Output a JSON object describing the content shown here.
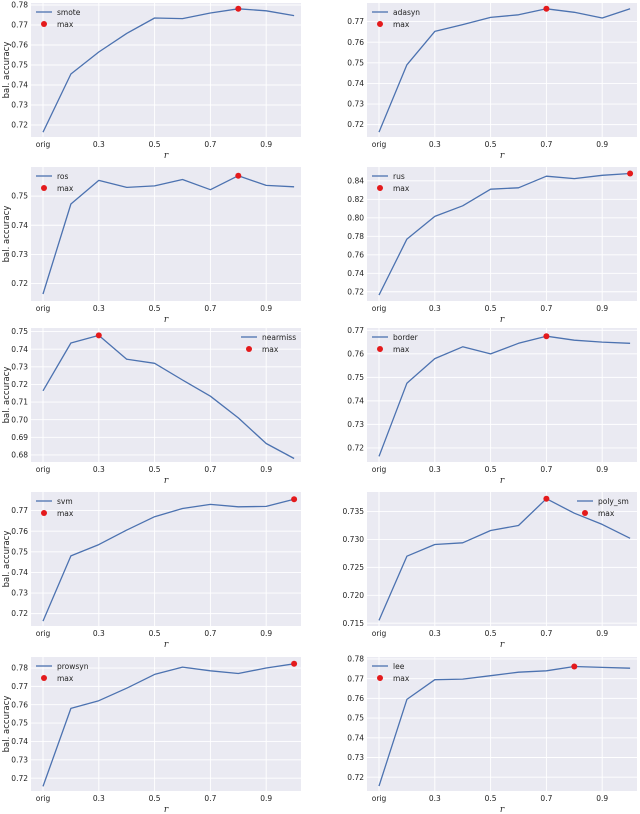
{
  "chart_data": [
    {
      "type": "line",
      "x": [
        "orig",
        "0.2",
        "0.3",
        "0.4",
        "0.5",
        "0.6",
        "0.7",
        "0.8",
        "0.9",
        "1.0"
      ],
      "xticks": [
        "orig",
        "0.3",
        "0.5",
        "0.7",
        "0.9"
      ],
      "xlabel": "r",
      "ylabel": "bal. accuracy",
      "ylim": [
        0.714,
        0.781
      ],
      "yticks": [
        "0.72",
        "0.73",
        "0.74",
        "0.75",
        "0.76",
        "0.77",
        "0.78"
      ],
      "series": [
        {
          "name": "smote",
          "values": [
            0.7164,
            0.7455,
            0.7565,
            0.7658,
            0.7735,
            0.7732,
            0.776,
            0.7781,
            0.7771,
            0.7747
          ]
        }
      ],
      "max_marker": {
        "label": "max",
        "x_index": 7
      },
      "legend": "top-left",
      "grid": true
    },
    {
      "type": "line",
      "x": [
        "orig",
        "0.2",
        "0.3",
        "0.4",
        "0.5",
        "0.6",
        "0.7",
        "0.8",
        "0.9",
        "1.0"
      ],
      "xticks": [
        "orig",
        "0.3",
        "0.5",
        "0.7",
        "0.9"
      ],
      "xlabel": "r",
      "ylabel": "",
      "ylim": [
        0.714,
        0.779
      ],
      "yticks": [
        "0.72",
        "0.73",
        "0.74",
        "0.75",
        "0.76",
        "0.77"
      ],
      "series": [
        {
          "name": "adasyn",
          "values": [
            0.7164,
            0.749,
            0.7652,
            0.7685,
            0.772,
            0.7733,
            0.7762,
            0.7745,
            0.7717,
            0.7762
          ]
        }
      ],
      "max_marker": {
        "label": "max",
        "x_index": 6
      },
      "legend": "top-left",
      "grid": true
    },
    {
      "type": "line",
      "x": [
        "orig",
        "0.2",
        "0.3",
        "0.4",
        "0.5",
        "0.6",
        "0.7",
        "0.8",
        "0.9",
        "1.0"
      ],
      "xticks": [
        "orig",
        "0.3",
        "0.5",
        "0.7",
        "0.9"
      ],
      "xlabel": "r",
      "ylabel": "bal. accuracy",
      "ylim": [
        0.714,
        0.76
      ],
      "yticks": [
        "0.72",
        "0.73",
        "0.74",
        "0.75"
      ],
      "series": [
        {
          "name": "ros",
          "values": [
            0.7164,
            0.7473,
            0.7554,
            0.753,
            0.7535,
            0.7557,
            0.7522,
            0.757,
            0.7537,
            0.7532
          ]
        }
      ],
      "max_marker": {
        "label": "max",
        "x_index": 7
      },
      "legend": "top-left",
      "grid": true
    },
    {
      "type": "line",
      "x": [
        "orig",
        "0.2",
        "0.3",
        "0.4",
        "0.5",
        "0.6",
        "0.7",
        "0.8",
        "0.9",
        "1.0"
      ],
      "xticks": [
        "orig",
        "0.3",
        "0.5",
        "0.7",
        "0.9"
      ],
      "xlabel": "r",
      "ylabel": "",
      "ylim": [
        0.71,
        0.855
      ],
      "yticks": [
        "0.72",
        "0.74",
        "0.76",
        "0.78",
        "0.80",
        "0.82",
        "0.84"
      ],
      "series": [
        {
          "name": "rus",
          "values": [
            0.7164,
            0.777,
            0.8015,
            0.813,
            0.831,
            0.8325,
            0.845,
            0.8425,
            0.846,
            0.848
          ]
        }
      ],
      "max_marker": {
        "label": "max",
        "x_index": 9
      },
      "legend": "top-left",
      "grid": true
    },
    {
      "type": "line",
      "x": [
        "orig",
        "0.2",
        "0.3",
        "0.4",
        "0.5",
        "0.6",
        "0.7",
        "0.8",
        "0.9",
        "1.0"
      ],
      "xticks": [
        "orig",
        "0.3",
        "0.5",
        "0.7",
        "0.9"
      ],
      "xlabel": "r",
      "ylabel": "bal. accuracy",
      "ylim": [
        0.676,
        0.752
      ],
      "yticks": [
        "0.68",
        "0.69",
        "0.70",
        "0.71",
        "0.72",
        "0.73",
        "0.74",
        "0.75"
      ],
      "series": [
        {
          "name": "nearmiss",
          "values": [
            0.7164,
            0.7435,
            0.7478,
            0.7343,
            0.732,
            0.7225,
            0.7133,
            0.701,
            0.6865,
            0.678
          ]
        }
      ],
      "max_marker": {
        "label": "max",
        "x_index": 2
      },
      "legend": "top-right",
      "grid": true
    },
    {
      "type": "line",
      "x": [
        "orig",
        "0.2",
        "0.3",
        "0.4",
        "0.5",
        "0.6",
        "0.7",
        "0.8",
        "0.9",
        "1.0"
      ],
      "xticks": [
        "orig",
        "0.3",
        "0.5",
        "0.7",
        "0.9"
      ],
      "xlabel": "r",
      "ylabel": "",
      "ylim": [
        0.714,
        0.771
      ],
      "yticks": [
        "0.72",
        "0.73",
        "0.74",
        "0.75",
        "0.76",
        "0.77"
      ],
      "series": [
        {
          "name": "border",
          "values": [
            0.7164,
            0.7475,
            0.758,
            0.763,
            0.76,
            0.7645,
            0.7675,
            0.7658,
            0.765,
            0.7645
          ]
        }
      ],
      "max_marker": {
        "label": "max",
        "x_index": 6
      },
      "legend": "top-left",
      "grid": true
    },
    {
      "type": "line",
      "x": [
        "orig",
        "0.2",
        "0.3",
        "0.4",
        "0.5",
        "0.6",
        "0.7",
        "0.8",
        "0.9",
        "1.0"
      ],
      "xticks": [
        "orig",
        "0.3",
        "0.5",
        "0.7",
        "0.9"
      ],
      "xlabel": "r",
      "ylabel": "bal. accuracy",
      "ylim": [
        0.714,
        0.779
      ],
      "yticks": [
        "0.72",
        "0.73",
        "0.74",
        "0.75",
        "0.76",
        "0.77"
      ],
      "series": [
        {
          "name": "svm",
          "values": [
            0.7164,
            0.748,
            0.7535,
            0.7605,
            0.767,
            0.771,
            0.773,
            0.7718,
            0.772,
            0.7755
          ]
        }
      ],
      "max_marker": {
        "label": "max",
        "x_index": 9
      },
      "legend": "top-left",
      "grid": true
    },
    {
      "type": "line",
      "x": [
        "orig",
        "0.2",
        "0.3",
        "0.4",
        "0.5",
        "0.6",
        "0.7",
        "0.8",
        "0.9",
        "1.0"
      ],
      "xticks": [
        "orig",
        "0.3",
        "0.5",
        "0.7",
        "0.9"
      ],
      "xlabel": "r",
      "ylabel": "",
      "ylim": [
        0.7145,
        0.7385
      ],
      "yticks": [
        "0.715",
        "0.720",
        "0.725",
        "0.730",
        "0.735"
      ],
      "series": [
        {
          "name": "poly_sm",
          "values": [
            0.7155,
            0.727,
            0.7291,
            0.7294,
            0.7316,
            0.7325,
            0.7373,
            0.7347,
            0.7327,
            0.7302
          ]
        }
      ],
      "max_marker": {
        "label": "max",
        "x_index": 6
      },
      "legend": "top-right",
      "grid": true
    },
    {
      "type": "line",
      "x": [
        "orig",
        "0.2",
        "0.3",
        "0.4",
        "0.5",
        "0.6",
        "0.7",
        "0.8",
        "0.9",
        "1.0"
      ],
      "xticks": [
        "orig",
        "0.3",
        "0.5",
        "0.7",
        "0.9"
      ],
      "xlabel": "r",
      "ylabel": "bal. accuracy",
      "ylim": [
        0.713,
        0.786
      ],
      "yticks": [
        "0.72",
        "0.73",
        "0.74",
        "0.75",
        "0.76",
        "0.77",
        "0.78"
      ],
      "series": [
        {
          "name": "prowsyn",
          "values": [
            0.7155,
            0.758,
            0.7622,
            0.769,
            0.7765,
            0.7805,
            0.7785,
            0.777,
            0.78,
            0.7823
          ]
        }
      ],
      "max_marker": {
        "label": "max",
        "x_index": 9
      },
      "legend": "top-left",
      "grid": true
    },
    {
      "type": "line",
      "x": [
        "orig",
        "0.2",
        "0.3",
        "0.4",
        "0.5",
        "0.6",
        "0.7",
        "0.8",
        "0.9",
        "1.0"
      ],
      "xticks": [
        "orig",
        "0.3",
        "0.5",
        "0.7",
        "0.9"
      ],
      "xlabel": "r",
      "ylabel": "",
      "ylim": [
        0.713,
        0.781
      ],
      "yticks": [
        "0.72",
        "0.73",
        "0.74",
        "0.75",
        "0.76",
        "0.77",
        "0.78"
      ],
      "series": [
        {
          "name": "lee",
          "values": [
            0.7155,
            0.7595,
            0.7695,
            0.7698,
            0.7715,
            0.7733,
            0.774,
            0.7762,
            0.7757,
            0.7753
          ]
        }
      ],
      "max_marker": {
        "label": "max",
        "x_index": 7
      },
      "legend": "top-left",
      "grid": true
    }
  ],
  "style": {
    "plot_bg": "#eaeaf2",
    "grid_color": "#ffffff",
    "line_color": "#4c72b0",
    "max_color": "#e41a1c",
    "text_color": "#222222"
  }
}
